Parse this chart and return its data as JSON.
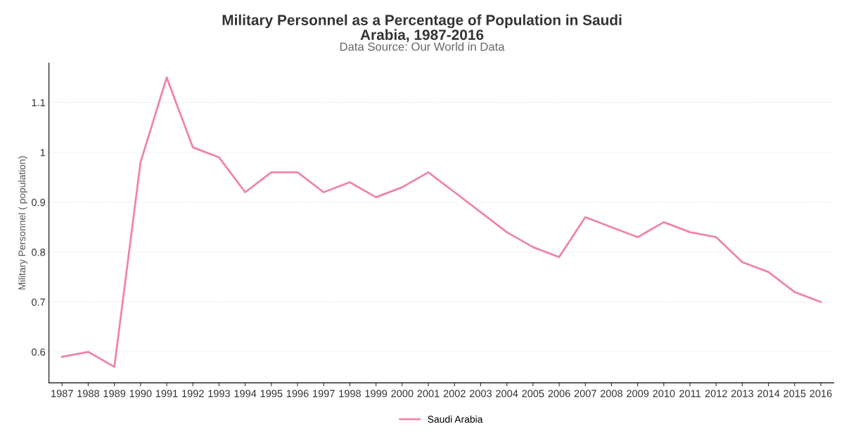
{
  "chart_data": {
    "type": "line",
    "title": "Military Personnel as a Percentage of Population in Saudi\nArabia, 1987-2016",
    "subtitle": "Data Source: Our World in Data",
    "ylabel": "Military Personnel ( population)",
    "categories": [
      "1987",
      "1988",
      "1989",
      "1990",
      "1991",
      "1992",
      "1993",
      "1994",
      "1995",
      "1996",
      "1997",
      "1998",
      "1999",
      "2000",
      "2001",
      "2002",
      "2003",
      "2004",
      "2005",
      "2006",
      "2007",
      "2008",
      "2009",
      "2010",
      "2011",
      "2012",
      "2013",
      "2014",
      "2015",
      "2016"
    ],
    "series": [
      {
        "name": "Saudi Arabia",
        "color": "#ef84a9",
        "values": [
          0.59,
          0.6,
          0.57,
          0.98,
          1.15,
          1.01,
          0.99,
          0.92,
          0.96,
          0.96,
          0.92,
          0.94,
          0.91,
          0.93,
          0.96,
          0.92,
          0.88,
          0.84,
          0.81,
          0.79,
          0.87,
          0.85,
          0.83,
          0.86,
          0.84,
          0.83,
          0.78,
          0.76,
          0.72,
          0.7
        ]
      }
    ],
    "ylim": [
      0.538,
      1.179
    ],
    "yticks": [
      0.6,
      0.7,
      0.8,
      0.9,
      1,
      1.1
    ],
    "grid": "y",
    "legend": "bottom",
    "marker": "none",
    "line_style": "solid"
  }
}
